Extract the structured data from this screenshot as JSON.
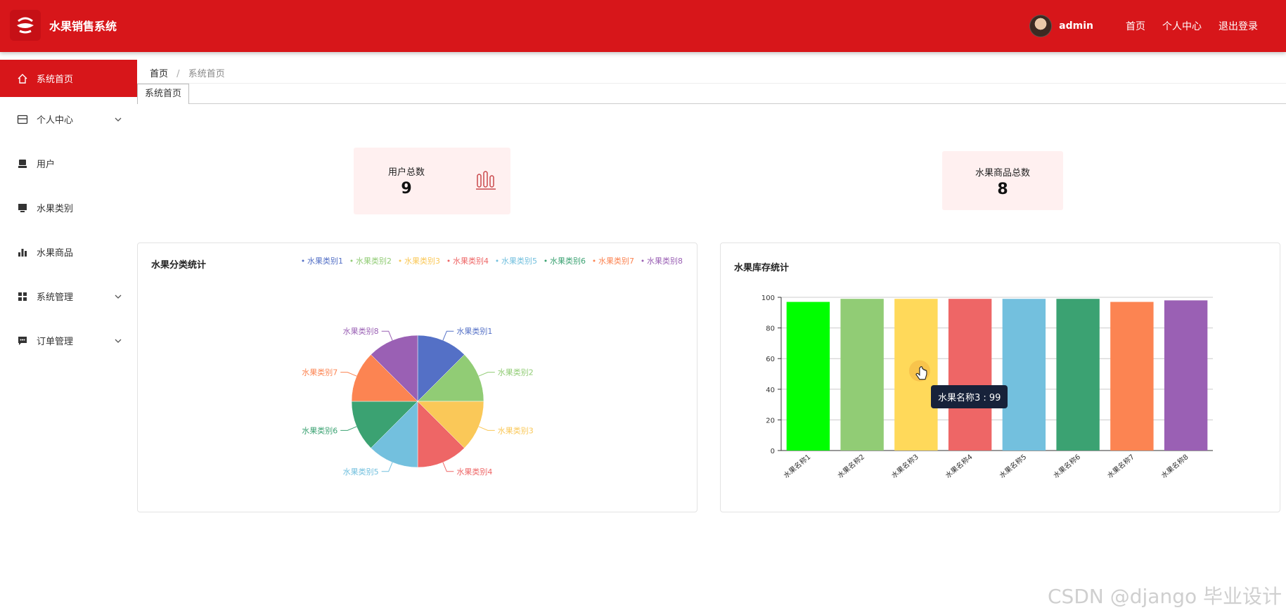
{
  "app": {
    "title": "水果销售系统"
  },
  "header": {
    "username": "admin",
    "links": [
      "首页",
      "个人中心",
      "退出登录"
    ]
  },
  "sidebar": {
    "items": [
      {
        "label": "系统首页",
        "icon": "home-icon",
        "active": true,
        "expandable": false
      },
      {
        "label": "个人中心",
        "icon": "id-card-icon",
        "active": false,
        "expandable": true
      },
      {
        "label": "用户",
        "icon": "user-icon",
        "active": false,
        "expandable": false
      },
      {
        "label": "水果类别",
        "icon": "monitor-icon",
        "active": false,
        "expandable": false
      },
      {
        "label": "水果商品",
        "icon": "bar-chart-icon",
        "active": false,
        "expandable": false
      },
      {
        "label": "系统管理",
        "icon": "grid-icon",
        "active": false,
        "expandable": true
      },
      {
        "label": "订单管理",
        "icon": "message-icon",
        "active": false,
        "expandable": true
      }
    ]
  },
  "breadcrumb": {
    "home": "首页",
    "separator": "/",
    "current": "系统首页"
  },
  "tabs": [
    {
      "label": "系统首页"
    }
  ],
  "stats": [
    {
      "label": "用户总数",
      "value": "9",
      "icon": "bar-chart-outline-icon"
    },
    {
      "label": "水果商品总数",
      "value": "8"
    }
  ],
  "pie_panel": {
    "title": "水果分类统计"
  },
  "bar_panel": {
    "title": "水果库存统计"
  },
  "tooltip": {
    "text": "水果名称3 : 99"
  },
  "watermark": "CSDN @django 毕业设计",
  "chart_data": [
    {
      "type": "pie",
      "title": "水果分类统计",
      "legend_position": "top-right",
      "labels": [
        "水果类别1",
        "水果类别2",
        "水果类别3",
        "水果类别4",
        "水果类别5",
        "水果类别6",
        "水果类别7",
        "水果类别8"
      ],
      "values": [
        1,
        1,
        1,
        1,
        1,
        1,
        1,
        1
      ],
      "colors": [
        "#5470c6",
        "#91cc75",
        "#fac858",
        "#ee6666",
        "#73c0de",
        "#3ba272",
        "#fc8452",
        "#9a60b4"
      ]
    },
    {
      "type": "bar",
      "title": "水果库存统计",
      "categories": [
        "水果名称1",
        "水果名称2",
        "水果名称3",
        "水果名称4",
        "水果名称5",
        "水果名称6",
        "水果名称7",
        "水果名称8"
      ],
      "values": [
        97,
        99,
        99,
        99,
        99,
        99,
        97,
        98
      ],
      "colors": [
        "#00ff00",
        "#91cc75",
        "#ffd95a",
        "#ee6666",
        "#73c0de",
        "#3ba272",
        "#fc8452",
        "#9a60b4"
      ],
      "ylim": [
        0,
        100
      ],
      "yticks": [
        0,
        20,
        40,
        60,
        80,
        100
      ],
      "grid": true
    }
  ]
}
